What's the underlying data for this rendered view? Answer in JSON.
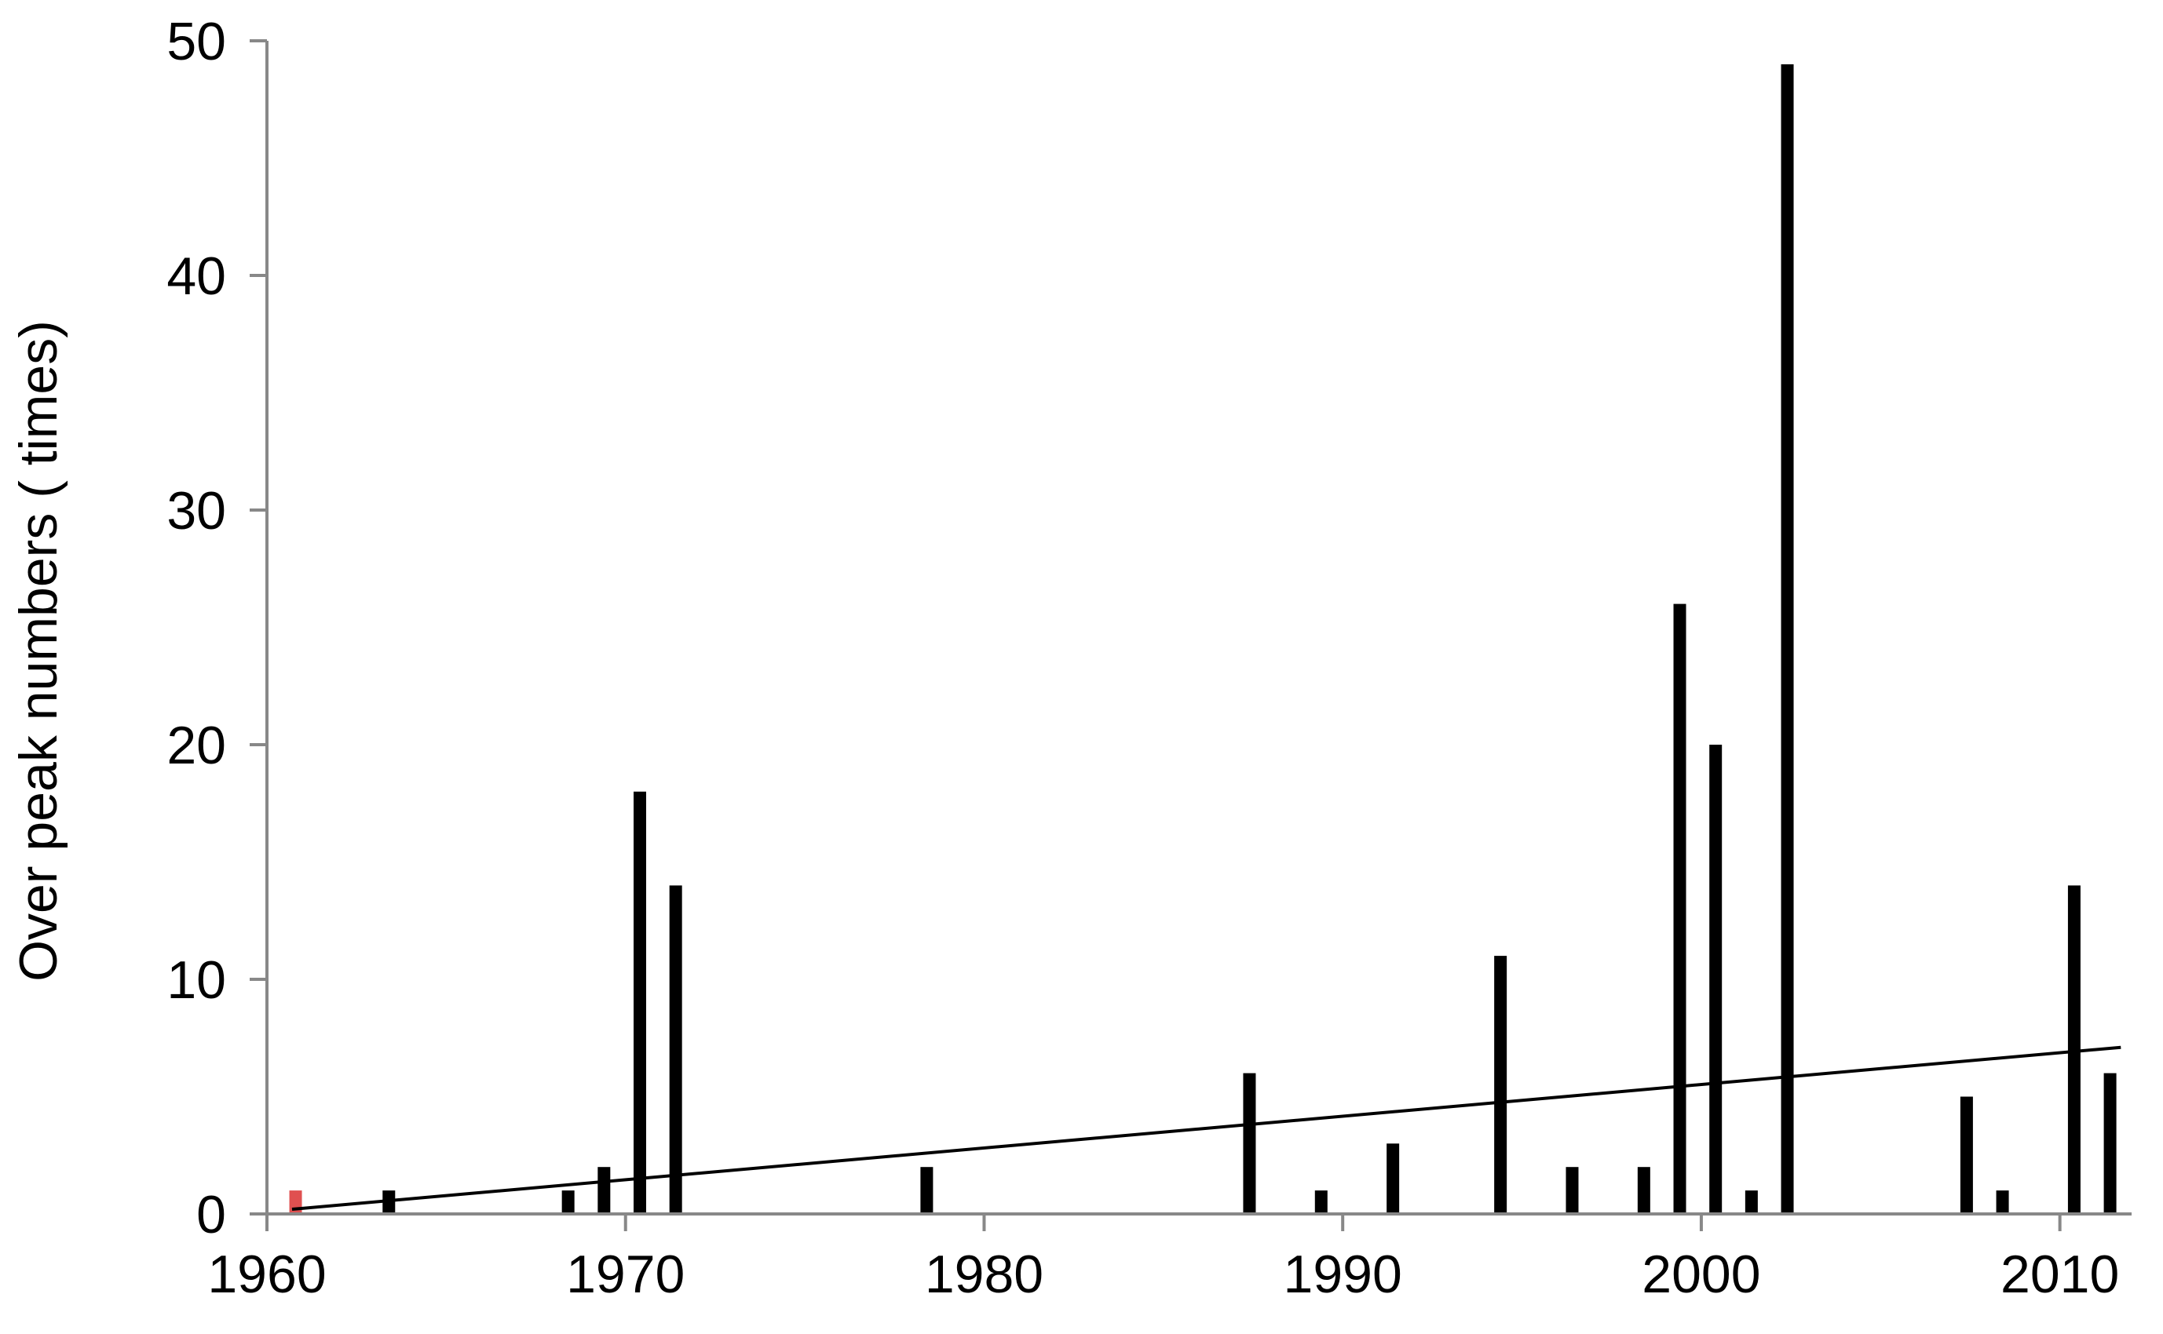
{
  "chart_data": {
    "type": "bar",
    "title": "",
    "xlabel": "",
    "ylabel": "Over peak numbers ( times)",
    "xlim": [
      1960,
      2012
    ],
    "ylim": [
      0,
      50
    ],
    "xticks": [
      1960,
      1970,
      1980,
      1990,
      2000,
      2010
    ],
    "yticks": [
      0,
      10,
      20,
      30,
      40,
      50
    ],
    "grid": false,
    "legend": "none",
    "bar_color": "#000000",
    "highlight_color": "#e05050",
    "trend_color": "#000000",
    "series": [
      {
        "points": [
          {
            "x": 1960.8,
            "y": 1,
            "highlight": true
          },
          {
            "x": 1963.4,
            "y": 1
          },
          {
            "x": 1968.4,
            "y": 1
          },
          {
            "x": 1969.4,
            "y": 2
          },
          {
            "x": 1970.4,
            "y": 18
          },
          {
            "x": 1971.4,
            "y": 14
          },
          {
            "x": 1978.4,
            "y": 2
          },
          {
            "x": 1987.4,
            "y": 6
          },
          {
            "x": 1989.4,
            "y": 1
          },
          {
            "x": 1991.4,
            "y": 3
          },
          {
            "x": 1994.4,
            "y": 11
          },
          {
            "x": 1996.4,
            "y": 2
          },
          {
            "x": 1998.4,
            "y": 2
          },
          {
            "x": 1999.4,
            "y": 26
          },
          {
            "x": 2000.4,
            "y": 20
          },
          {
            "x": 2001.4,
            "y": 1
          },
          {
            "x": 2002.4,
            "y": 49
          },
          {
            "x": 2007.4,
            "y": 5
          },
          {
            "x": 2008.4,
            "y": 1
          },
          {
            "x": 2010.4,
            "y": 14
          },
          {
            "x": 2011.4,
            "y": 6
          }
        ]
      }
    ],
    "trendline": {
      "type": "linear",
      "from": [
        1960.7,
        0.2
      ],
      "to": [
        2011.7,
        7.1
      ]
    }
  }
}
